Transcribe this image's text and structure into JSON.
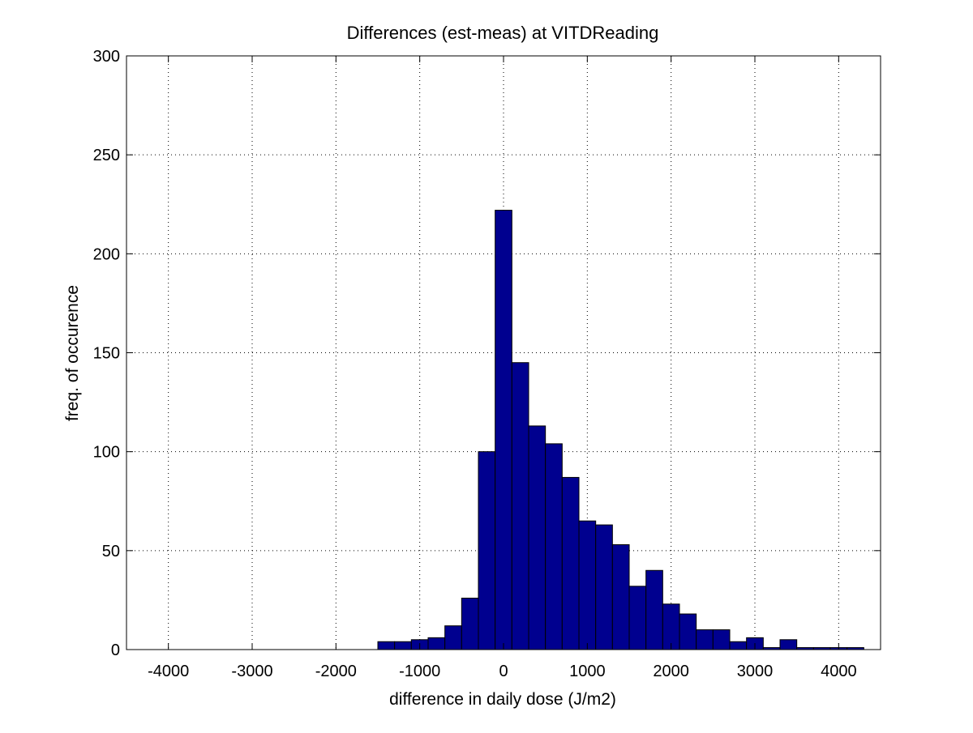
{
  "chart_data": {
    "type": "bar",
    "title": "Differences (est-meas) at VITDReading",
    "xlabel": "difference in daily dose (J/m2)",
    "ylabel": "freq. of occurence",
    "xlim": [
      -4500,
      4500
    ],
    "ylim": [
      0,
      300
    ],
    "xticks": [
      -4000,
      -3000,
      -2000,
      -1000,
      0,
      1000,
      2000,
      3000,
      4000
    ],
    "yticks": [
      0,
      50,
      100,
      150,
      200,
      250,
      300
    ],
    "grid": true,
    "bar_color": "#00008f",
    "bin_width": 200,
    "bins": [
      {
        "x": -1400,
        "value": 4
      },
      {
        "x": -1200,
        "value": 4
      },
      {
        "x": -1000,
        "value": 5
      },
      {
        "x": -800,
        "value": 6
      },
      {
        "x": -600,
        "value": 12
      },
      {
        "x": -400,
        "value": 26
      },
      {
        "x": -200,
        "value": 100
      },
      {
        "x": 0,
        "value": 222
      },
      {
        "x": 200,
        "value": 145
      },
      {
        "x": 400,
        "value": 113
      },
      {
        "x": 600,
        "value": 104
      },
      {
        "x": 800,
        "value": 87
      },
      {
        "x": 1000,
        "value": 65
      },
      {
        "x": 1200,
        "value": 63
      },
      {
        "x": 1400,
        "value": 53
      },
      {
        "x": 1600,
        "value": 32
      },
      {
        "x": 1800,
        "value": 40
      },
      {
        "x": 2000,
        "value": 23
      },
      {
        "x": 2200,
        "value": 18
      },
      {
        "x": 2400,
        "value": 10
      },
      {
        "x": 2600,
        "value": 10
      },
      {
        "x": 2800,
        "value": 4
      },
      {
        "x": 3000,
        "value": 6
      },
      {
        "x": 3200,
        "value": 1
      },
      {
        "x": 3400,
        "value": 5
      },
      {
        "x": 3600,
        "value": 1
      },
      {
        "x": 3800,
        "value": 1
      },
      {
        "x": 4000,
        "value": 1
      },
      {
        "x": 4200,
        "value": 1
      }
    ]
  }
}
